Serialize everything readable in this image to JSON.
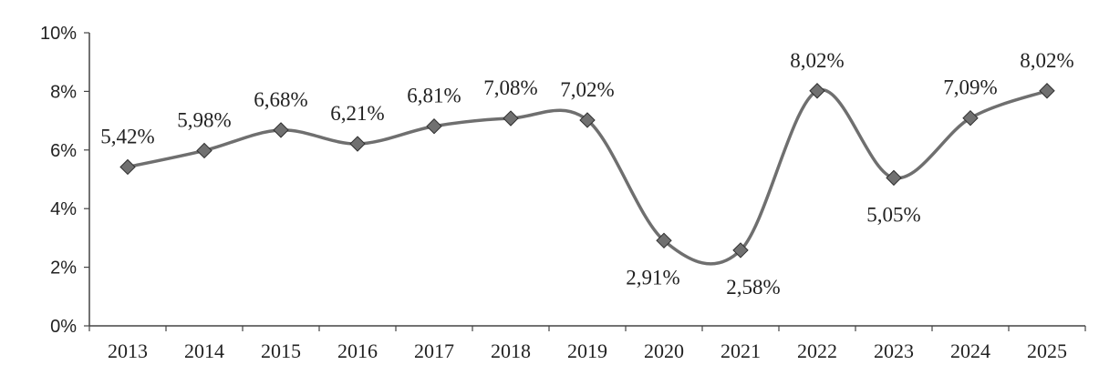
{
  "chart_data": {
    "type": "line",
    "title": "",
    "xlabel": "",
    "ylabel": "",
    "categories": [
      "2013",
      "2014",
      "2015",
      "2016",
      "2017",
      "2018",
      "2019",
      "2020",
      "2021",
      "2022",
      "2023",
      "2024",
      "2025"
    ],
    "series": [
      {
        "values": [
          5.42,
          5.98,
          6.68,
          6.21,
          6.81,
          7.08,
          7.02,
          2.91,
          2.58,
          8.02,
          5.05,
          7.09,
          8.02
        ],
        "labels": [
          "5,42%",
          "5,98%",
          "6,68%",
          "6,21%",
          "6,81%",
          "7,08%",
          "7,02%",
          "2,91%",
          "2,58%",
          "8,02%",
          "5,05%",
          "7,09%",
          "8,02%"
        ]
      }
    ],
    "ylim": [
      0,
      10
    ],
    "y_ticks": [
      0,
      2,
      4,
      6,
      8,
      10
    ],
    "y_tick_labels": [
      "0%",
      "2%",
      "4%",
      "6%",
      "8%",
      "10%"
    ],
    "smooth": true,
    "grid": false,
    "legend": "none",
    "colors": {
      "line": "#6f6f6f",
      "marker": "#707070",
      "axis": "#444444",
      "text": "#222222"
    }
  }
}
